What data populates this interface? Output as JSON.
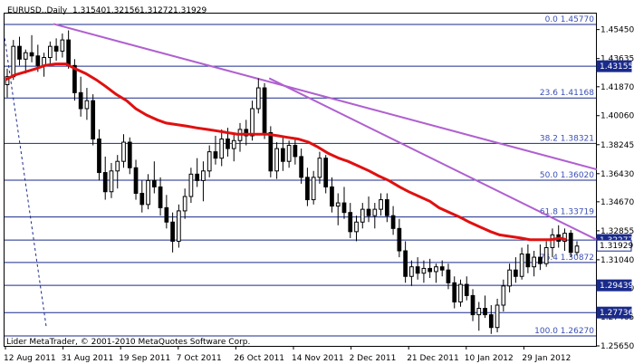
{
  "header": {
    "symbol": "EURUSD.,Daily",
    "open": "1.31540",
    "high": "1.32156",
    "low": "1.31272",
    "close": "1.31929"
  },
  "footer": {
    "copyright": "Lider MetaTrader, © 2001-2010 MetaQuotes Software Corp."
  },
  "colors": {
    "candle": "#000000",
    "moving_average": "#e01010",
    "trendline": "#b060d0",
    "fibo_level": "#1a2a8a",
    "fibo_text": "#3a4fb5",
    "current_price_tag": "#1a2a8a",
    "grid_border": "#000000"
  },
  "chart_data": {
    "type": "candlestick",
    "y_axis": {
      "min": 1.2565,
      "max": 1.4645,
      "tick_labels": [
        "1.45450",
        "1.43635",
        "1.41870",
        "1.40060",
        "1.38245",
        "1.36430",
        "1.34670",
        "1.32855",
        "1.31040",
        "1.29280",
        "1.27465",
        "1.25650"
      ]
    },
    "x_axis": {
      "tick_labels": [
        "12 Aug 2011",
        "31 Aug 2011",
        "19 Sep 2011",
        "7 Oct 2011",
        "26 Oct 2011",
        "14 Nov 2011",
        "2 Dec 2011",
        "21 Dec 2011",
        "10 Jan 2012",
        "29 Jan 2012"
      ]
    },
    "fibonacci_levels": [
      {
        "label": "0.0 1.45770",
        "price": 1.4577
      },
      {
        "label": "23.6 1.41168",
        "price": 1.41168
      },
      {
        "label": "38.2 1.38321",
        "price": 1.38321
      },
      {
        "label": "50.0 1.36020",
        "price": 1.3602
      },
      {
        "label": "61.8 1.33719",
        "price": 1.33719
      },
      {
        "label": "76.4 1.30872",
        "price": 1.30872
      },
      {
        "label": "100.0 1.26270",
        "price": 1.2627
      }
    ],
    "price_tags": [
      "1.43155",
      "1.32277",
      "1.31929",
      "1.29439",
      "1.27736"
    ],
    "horizontal_lines": [
      1.43155,
      1.32277,
      1.29439,
      1.27736
    ],
    "trendlines": [
      {
        "from": [
          -0.05,
          1.449
        ],
        "to": [
          2.7,
          1.268
        ]
      },
      {
        "from": [
          3.17,
          1.458
        ],
        "to": [
          39.0,
          1.367
        ]
      },
      {
        "from": [
          17.4,
          1.424
        ],
        "to": [
          39.0,
          1.323
        ]
      }
    ],
    "moving_average": [
      [
        0.0,
        1.423
      ],
      [
        0.6,
        1.426
      ],
      [
        1.3,
        1.428
      ],
      [
        2.0,
        1.43
      ],
      [
        2.6,
        1.432
      ],
      [
        3.3,
        1.433
      ],
      [
        4.0,
        1.433
      ],
      [
        4.6,
        1.43
      ],
      [
        5.3,
        1.427
      ],
      [
        6.0,
        1.423
      ],
      [
        6.6,
        1.419
      ],
      [
        7.3,
        1.414
      ],
      [
        8.0,
        1.41
      ],
      [
        8.6,
        1.405
      ],
      [
        9.3,
        1.401
      ],
      [
        10.0,
        1.398
      ],
      [
        10.6,
        1.396
      ],
      [
        11.3,
        1.395
      ],
      [
        12.0,
        1.394
      ],
      [
        12.6,
        1.393
      ],
      [
        13.3,
        1.392
      ],
      [
        14.0,
        1.391
      ],
      [
        14.6,
        1.39
      ],
      [
        15.3,
        1.389
      ],
      [
        16.0,
        1.389
      ],
      [
        16.6,
        1.389
      ],
      [
        17.3,
        1.389
      ],
      [
        18.0,
        1.388
      ],
      [
        18.6,
        1.387
      ],
      [
        19.3,
        1.386
      ],
      [
        20.0,
        1.384
      ],
      [
        20.6,
        1.381
      ],
      [
        21.3,
        1.377
      ],
      [
        22.0,
        1.374
      ],
      [
        22.6,
        1.372
      ],
      [
        23.3,
        1.369
      ],
      [
        24.0,
        1.366
      ],
      [
        24.6,
        1.363
      ],
      [
        25.3,
        1.36
      ],
      [
        26.0,
        1.356
      ],
      [
        26.6,
        1.353
      ],
      [
        27.3,
        1.35
      ],
      [
        28.0,
        1.347
      ],
      [
        28.6,
        1.343
      ],
      [
        29.3,
        1.34
      ],
      [
        30.0,
        1.337
      ],
      [
        30.6,
        1.334
      ],
      [
        31.3,
        1.331
      ],
      [
        32.0,
        1.328
      ],
      [
        32.6,
        1.326
      ],
      [
        33.3,
        1.325
      ],
      [
        34.0,
        1.324
      ],
      [
        34.6,
        1.323
      ],
      [
        35.3,
        1.323
      ],
      [
        36.0,
        1.323
      ],
      [
        36.6,
        1.324
      ],
      [
        37.0,
        1.323
      ]
    ],
    "candles": [
      [
        0,
        1.42,
        1.43,
        1.412,
        1.425
      ],
      [
        1,
        1.425,
        1.448,
        1.423,
        1.444
      ],
      [
        2,
        1.444,
        1.45,
        1.432,
        1.436
      ],
      [
        3,
        1.436,
        1.442,
        1.427,
        1.44
      ],
      [
        4,
        1.44,
        1.451,
        1.434,
        1.438
      ],
      [
        5,
        1.438,
        1.445,
        1.428,
        1.432
      ],
      [
        6,
        1.432,
        1.44,
        1.425,
        1.437
      ],
      [
        7,
        1.437,
        1.447,
        1.433,
        1.444
      ],
      [
        8,
        1.444,
        1.449,
        1.435,
        1.441
      ],
      [
        9,
        1.441,
        1.452,
        1.437,
        1.448
      ],
      [
        10,
        1.448,
        1.454,
        1.43,
        1.432
      ],
      [
        11,
        1.432,
        1.436,
        1.41,
        1.415
      ],
      [
        12,
        1.415,
        1.425,
        1.4,
        1.405
      ],
      [
        13,
        1.405,
        1.418,
        1.398,
        1.41
      ],
      [
        14,
        1.41,
        1.414,
        1.382,
        1.386
      ],
      [
        15,
        1.386,
        1.392,
        1.36,
        1.365
      ],
      [
        16,
        1.365,
        1.375,
        1.348,
        1.353
      ],
      [
        17,
        1.353,
        1.371,
        1.349,
        1.366
      ],
      [
        18,
        1.366,
        1.376,
        1.355,
        1.372
      ],
      [
        19,
        1.372,
        1.389,
        1.368,
        1.384
      ],
      [
        20,
        1.384,
        1.387,
        1.364,
        1.368
      ],
      [
        21,
        1.368,
        1.373,
        1.348,
        1.352
      ],
      [
        22,
        1.352,
        1.36,
        1.34,
        1.345
      ],
      [
        23,
        1.345,
        1.364,
        1.342,
        1.36
      ],
      [
        24,
        1.36,
        1.372,
        1.352,
        1.356
      ],
      [
        25,
        1.356,
        1.362,
        1.338,
        1.343
      ],
      [
        26,
        1.343,
        1.351,
        1.33,
        1.334
      ],
      [
        27,
        1.334,
        1.34,
        1.315,
        1.322
      ],
      [
        28,
        1.322,
        1.345,
        1.318,
        1.341
      ],
      [
        29,
        1.341,
        1.355,
        1.336,
        1.35
      ],
      [
        30,
        1.35,
        1.368,
        1.346,
        1.364
      ],
      [
        31,
        1.364,
        1.374,
        1.356,
        1.36
      ],
      [
        32,
        1.36,
        1.372,
        1.347,
        1.366
      ],
      [
        33,
        1.366,
        1.382,
        1.362,
        1.378
      ],
      [
        34,
        1.378,
        1.388,
        1.37,
        1.374
      ],
      [
        35,
        1.374,
        1.392,
        1.369,
        1.386
      ],
      [
        36,
        1.386,
        1.393,
        1.375,
        1.38
      ],
      [
        37,
        1.38,
        1.39,
        1.372,
        1.385
      ],
      [
        38,
        1.385,
        1.396,
        1.378,
        1.392
      ],
      [
        39,
        1.392,
        1.398,
        1.382,
        1.388
      ],
      [
        40,
        1.388,
        1.41,
        1.385,
        1.405
      ],
      [
        41,
        1.405,
        1.424,
        1.402,
        1.418
      ],
      [
        42,
        1.418,
        1.421,
        1.386,
        1.39
      ],
      [
        43,
        1.39,
        1.394,
        1.362,
        1.366
      ],
      [
        44,
        1.366,
        1.384,
        1.361,
        1.38
      ],
      [
        45,
        1.38,
        1.388,
        1.366,
        1.372
      ],
      [
        46,
        1.372,
        1.385,
        1.368,
        1.382
      ],
      [
        47,
        1.382,
        1.386,
        1.37,
        1.375
      ],
      [
        48,
        1.375,
        1.38,
        1.358,
        1.362
      ],
      [
        49,
        1.362,
        1.368,
        1.344,
        1.348
      ],
      [
        50,
        1.348,
        1.366,
        1.345,
        1.362
      ],
      [
        51,
        1.362,
        1.378,
        1.358,
        1.374
      ],
      [
        52,
        1.374,
        1.376,
        1.352,
        1.356
      ],
      [
        53,
        1.356,
        1.362,
        1.34,
        1.344
      ],
      [
        54,
        1.344,
        1.352,
        1.332,
        1.346
      ],
      [
        55,
        1.346,
        1.356,
        1.336,
        1.34
      ],
      [
        56,
        1.34,
        1.346,
        1.324,
        1.328
      ],
      [
        57,
        1.328,
        1.338,
        1.322,
        1.334
      ],
      [
        58,
        1.334,
        1.346,
        1.33,
        1.342
      ],
      [
        59,
        1.342,
        1.35,
        1.334,
        1.338
      ],
      [
        60,
        1.338,
        1.346,
        1.33,
        1.342
      ],
      [
        61,
        1.342,
        1.352,
        1.338,
        1.348
      ],
      [
        62,
        1.348,
        1.352,
        1.334,
        1.338
      ],
      [
        63,
        1.338,
        1.344,
        1.326,
        1.33
      ],
      [
        64,
        1.33,
        1.336,
        1.312,
        1.316
      ],
      [
        65,
        1.316,
        1.322,
        1.296,
        1.3
      ],
      [
        66,
        1.3,
        1.31,
        1.294,
        1.306
      ],
      [
        67,
        1.306,
        1.312,
        1.298,
        1.302
      ],
      [
        68,
        1.302,
        1.31,
        1.296,
        1.305
      ],
      [
        69,
        1.305,
        1.311,
        1.299,
        1.303
      ],
      [
        70,
        1.303,
        1.308,
        1.296,
        1.306
      ],
      [
        71,
        1.306,
        1.31,
        1.3,
        1.304
      ],
      [
        72,
        1.304,
        1.308,
        1.292,
        1.296
      ],
      [
        73,
        1.296,
        1.3,
        1.28,
        1.284
      ],
      [
        74,
        1.284,
        1.298,
        1.281,
        1.295
      ],
      [
        75,
        1.295,
        1.3,
        1.285,
        1.288
      ],
      [
        76,
        1.288,
        1.292,
        1.272,
        1.276
      ],
      [
        77,
        1.276,
        1.284,
        1.266,
        1.28
      ],
      [
        78,
        1.28,
        1.288,
        1.274,
        1.276
      ],
      [
        79,
        1.276,
        1.282,
        1.264,
        1.268
      ],
      [
        80,
        1.268,
        1.286,
        1.265,
        1.282
      ],
      [
        81,
        1.282,
        1.298,
        1.278,
        1.294
      ],
      [
        82,
        1.294,
        1.308,
        1.29,
        1.304
      ],
      [
        83,
        1.304,
        1.312,
        1.296,
        1.3
      ],
      [
        84,
        1.3,
        1.318,
        1.298,
        1.314
      ],
      [
        85,
        1.314,
        1.32,
        1.302,
        1.306
      ],
      [
        86,
        1.306,
        1.316,
        1.3,
        1.312
      ],
      [
        87,
        1.312,
        1.32,
        1.304,
        1.308
      ],
      [
        88,
        1.308,
        1.322,
        1.306,
        1.318
      ],
      [
        89,
        1.318,
        1.33,
        1.312,
        1.326
      ],
      [
        90,
        1.326,
        1.332,
        1.318,
        1.322
      ],
      [
        91,
        1.322,
        1.33,
        1.316,
        1.327
      ],
      [
        92,
        1.327,
        1.329,
        1.312,
        1.315
      ],
      [
        93,
        1.315,
        1.322,
        1.313,
        1.319
      ]
    ]
  }
}
